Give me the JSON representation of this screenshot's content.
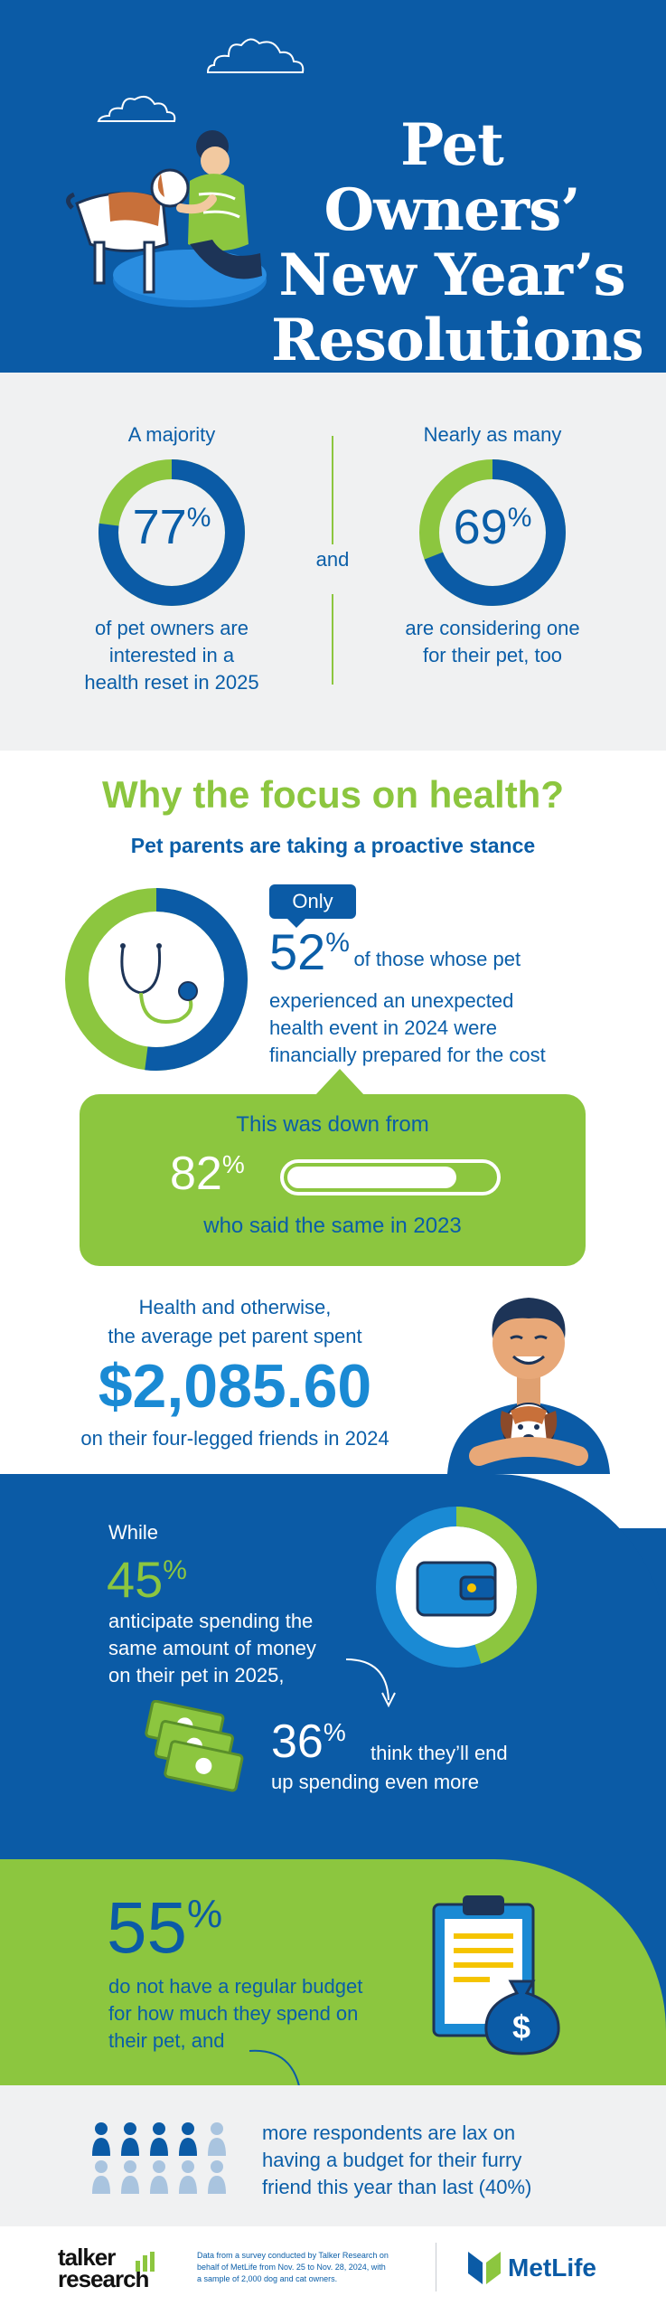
{
  "header": {
    "title_line1": "Pet Owners’",
    "title_line2": "New Year’s",
    "title_line3": "Resolutions"
  },
  "stats": {
    "left": {
      "label": "A majority",
      "value": "77",
      "unit": "%",
      "fraction": 0.77,
      "desc_line1": "of pet owners are",
      "desc_line2": "interested in a",
      "desc_line3": "health reset in 2025"
    },
    "connector": "and",
    "right": {
      "label": "Nearly as many",
      "value": "69",
      "unit": "%",
      "fraction": 0.69,
      "desc_line1": "are considering one",
      "desc_line2": "for their pet, too"
    }
  },
  "focus": {
    "heading": "Why the focus on health?",
    "subheading": "Pet parents are taking a proactive stance",
    "badge": "Only",
    "value": "52",
    "unit": "%",
    "fraction": 0.52,
    "desc_line1_suffix": "of those whose pet",
    "desc_line2": "experienced an unexpected",
    "desc_line3": "health event in 2024 were",
    "desc_line4": "financially prepared for the cost",
    "callout": {
      "line1": "This was down from",
      "value": "82",
      "unit": "%",
      "fraction": 0.82,
      "line2": "who said the same in 2023"
    },
    "avg": {
      "line1": "Health and otherwise,",
      "line2": "the average pet parent spent",
      "amount": "$2,085.60",
      "line3": "on their four-legged friends in 2024"
    }
  },
  "spend": {
    "lead": "While",
    "value": "45",
    "unit": "%",
    "fraction": 0.45,
    "desc_line1": "anticipate spending the",
    "desc_line2": "same amount of money",
    "desc_line3": "on their pet in 2025,",
    "more_value": "36",
    "more_unit": "%",
    "more_line1": "think they’ll end",
    "more_line2": "up spending even more"
  },
  "budget": {
    "value": "55",
    "unit": "%",
    "desc_line1": "do not have a regular budget",
    "desc_line2": "for how much they spend on",
    "desc_line3": "their pet, and"
  },
  "lax": {
    "line1": "more respondents are lax on",
    "line2": "having a budget for their furry",
    "line3": "friend this year than last (40%)"
  },
  "footer": {
    "brand_line1": "talker",
    "brand_line2": "research",
    "note_line1": "Data from a survey conducted by Talker Research on",
    "note_line2": "behalf of MetLife from Nov. 25 to Nov. 28, 2024, with",
    "note_line3": "a sample of 2,000 dog and cat owners.",
    "partner": "MetLife"
  },
  "colors": {
    "blue": "#0b5ba6",
    "green": "#8cc63f",
    "light_gray": "#f0f1f2",
    "dark_navy": "#1d3457"
  }
}
